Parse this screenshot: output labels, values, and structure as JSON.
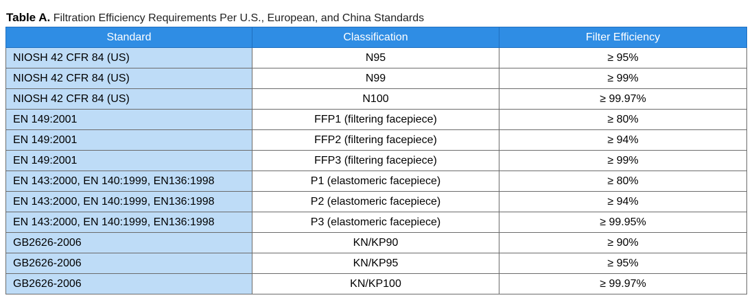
{
  "caption": {
    "label": "Table A.",
    "text": "Filtration Efficiency Requirements Per U.S., European, and China Standards"
  },
  "table": {
    "headers": [
      "Standard",
      "Classification",
      "Filter Efficiency"
    ],
    "rows": [
      [
        "NIOSH 42 CFR 84 (US)",
        "N95",
        "≥ 95%"
      ],
      [
        "NIOSH 42 CFR 84 (US)",
        "N99",
        "≥ 99%"
      ],
      [
        "NIOSH 42 CFR 84 (US)",
        "N100",
        "≥ 99.97%"
      ],
      [
        "EN 149:2001",
        "FFP1 (filtering facepiece)",
        "≥ 80%"
      ],
      [
        "EN 149:2001",
        "FFP2 (filtering facepiece)",
        "≥ 94%"
      ],
      [
        "EN 149:2001",
        "FFP3 (filtering facepiece)",
        "≥ 99%"
      ],
      [
        "EN 143:2000, EN 140:1999, EN136:1998",
        "P1 (elastomeric facepiece)",
        "≥ 80%"
      ],
      [
        "EN 143:2000, EN 140:1999, EN136:1998",
        "P2 (elastomeric facepiece)",
        "≥ 94%"
      ],
      [
        "EN 143:2000, EN 140:1999, EN136:1998",
        "P3 (elastomeric facepiece)",
        "≥ 99.95%"
      ],
      [
        "GB2626-2006",
        "KN/KP90",
        "≥ 90%"
      ],
      [
        "GB2626-2006",
        "KN/KP95",
        "≥ 95%"
      ],
      [
        "GB2626-2006",
        "KN/KP100",
        "≥ 99.97%"
      ]
    ]
  },
  "colors": {
    "header_bg": "#2f8de4",
    "header_text": "#ffffff",
    "standard_column_bg": "#bedcf7",
    "border": "#6a6a6a"
  }
}
